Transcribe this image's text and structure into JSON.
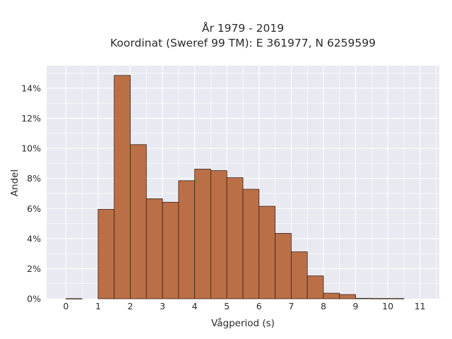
{
  "chart_data": {
    "type": "bar",
    "title_line1": "År 1979 - 2019",
    "title_line2": "Koordinat (Sweref 99 TM): E 361977, N 6259599",
    "xlabel": "Vågperiod (s)",
    "ylabel": "Andel",
    "bin_width": 0.5,
    "bins": [
      {
        "start": 0.0,
        "value": 0.0001
      },
      {
        "start": 1.0,
        "value": 0.0595
      },
      {
        "start": 1.5,
        "value": 0.1485
      },
      {
        "start": 2.0,
        "value": 0.1025
      },
      {
        "start": 2.5,
        "value": 0.0665
      },
      {
        "start": 3.0,
        "value": 0.0642
      },
      {
        "start": 3.5,
        "value": 0.0785
      },
      {
        "start": 4.0,
        "value": 0.0862
      },
      {
        "start": 4.5,
        "value": 0.0852
      },
      {
        "start": 5.0,
        "value": 0.0805
      },
      {
        "start": 5.5,
        "value": 0.0728
      },
      {
        "start": 6.0,
        "value": 0.0615
      },
      {
        "start": 6.5,
        "value": 0.0435
      },
      {
        "start": 7.0,
        "value": 0.0312
      },
      {
        "start": 7.5,
        "value": 0.0152
      },
      {
        "start": 8.0,
        "value": 0.0037
      },
      {
        "start": 8.5,
        "value": 0.0028
      },
      {
        "start": 9.0,
        "value": 0.0003
      },
      {
        "start": 9.5,
        "value": 0.0002
      },
      {
        "start": 10.0,
        "value": 0.0002
      }
    ],
    "xlim": [
      -0.6,
      11.6
    ],
    "ylim": [
      0,
      0.155
    ],
    "xticks": [
      0,
      1,
      2,
      3,
      4,
      5,
      6,
      7,
      8,
      9,
      10,
      11
    ],
    "yticks": [
      0,
      0.02,
      0.04,
      0.06,
      0.08,
      0.1,
      0.12,
      0.14
    ],
    "ytick_labels": [
      "0%",
      "2%",
      "4%",
      "6%",
      "8%",
      "10%",
      "12%",
      "14%"
    ],
    "grid": true,
    "colors": {
      "plot_background": "#e9e9f1",
      "grid": "#ffffff",
      "bar_fill": "#b8683c",
      "bar_edge": "#3a2418"
    }
  }
}
